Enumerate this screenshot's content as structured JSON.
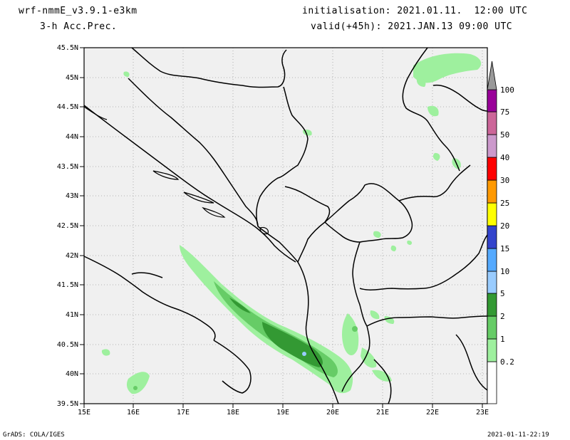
{
  "header": {
    "model": "wrf-nmmE_v3.9.1-e3km",
    "field": "3-h Acc.Prec.",
    "init": "initialisation: 2021.01.11.  12:00 UTC",
    "valid": "valid(+45h): 2021.JAN.13 09:00 UTC"
  },
  "axes": {
    "lat_labels": [
      "45.5N",
      "45N",
      "44.5N",
      "44N",
      "43.5N",
      "43N",
      "42.5N",
      "42N",
      "41.5N",
      "41N",
      "40.5N",
      "40N",
      "39.5N"
    ],
    "lon_labels": [
      "15E",
      "16E",
      "17E",
      "18E",
      "19E",
      "20E",
      "21E",
      "22E",
      "23E"
    ]
  },
  "colorbar": {
    "levels": [
      "0.2",
      "1",
      "2",
      "5",
      "10",
      "15",
      "20",
      "25",
      "30",
      "40",
      "50",
      "75",
      "100"
    ],
    "colors": [
      "#ffffff",
      "#9ef09e",
      "#66cc66",
      "#339933",
      "#99ccff",
      "#55aaff",
      "#3344cc",
      "#ffff00",
      "#ff9900",
      "#ff0000",
      "#cc99cc",
      "#cc6699",
      "#990099",
      "#999999"
    ]
  },
  "footer": {
    "left": "GrADS: COLA/IGES",
    "right": "2021-01-11-22:19"
  }
}
